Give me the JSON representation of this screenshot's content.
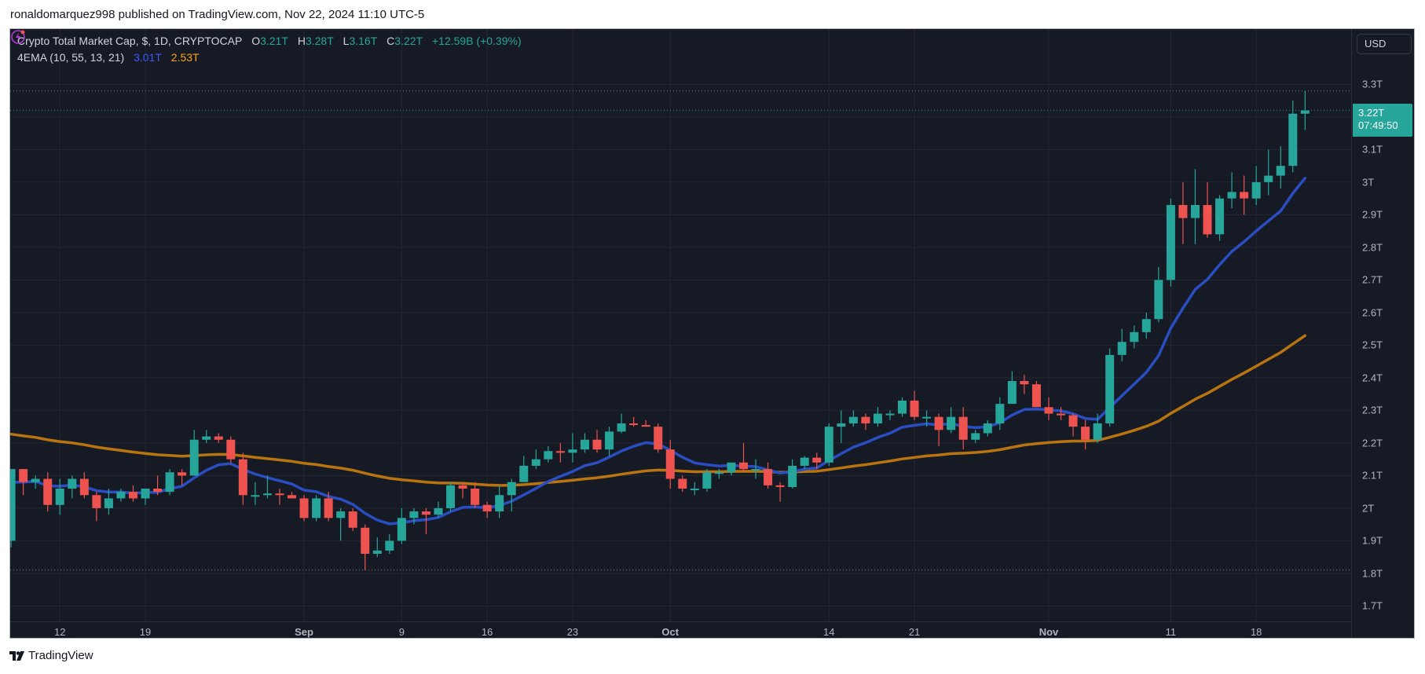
{
  "publisher_line": "ronaldomarquez998 published on TradingView.com, Nov 22, 2024 11:10 UTC-5",
  "legend": {
    "symbol": "Crypto Total Market Cap, $, 1D, CRYPTOCAP",
    "o_label": "O",
    "o_value": "3.21T",
    "h_label": "H",
    "h_value": "3.28T",
    "l_label": "L",
    "l_value": "3.16T",
    "c_label": "C",
    "c_value": "3.22T",
    "change": "+12.59B (+0.39%)",
    "indicator": "4EMA (10, 55, 13, 21)",
    "ema_fast_value": "3.01T",
    "ema_slow_value": "2.53T"
  },
  "price_axis": {
    "currency_button": "USD",
    "current_price": "3.22T",
    "countdown": "07:49:50"
  },
  "footer": {
    "brand": "TradingView"
  },
  "colors": {
    "up": "#26a69a",
    "down": "#ef5350",
    "ema_fast": "#2a4ec2",
    "ema_slow": "#b87410",
    "background": "#161a25"
  },
  "chart_data": {
    "type": "candlestick",
    "title": "Crypto Total Market Cap, $, 1D, CRYPTOCAP",
    "ylabel": "USD",
    "ylim": [
      1.66,
      3.38
    ],
    "y_unit": "T",
    "y_ticks": [
      {
        "v": 3.3,
        "label": "3.3T"
      },
      {
        "v": 3.1,
        "label": "3.1T"
      },
      {
        "v": 3.0,
        "label": "3T"
      },
      {
        "v": 2.9,
        "label": "2.9T"
      },
      {
        "v": 2.8,
        "label": "2.8T"
      },
      {
        "v": 2.7,
        "label": "2.7T"
      },
      {
        "v": 2.6,
        "label": "2.6T"
      },
      {
        "v": 2.5,
        "label": "2.5T"
      },
      {
        "v": 2.4,
        "label": "2.4T"
      },
      {
        "v": 2.3,
        "label": "2.3T"
      },
      {
        "v": 2.2,
        "label": "2.2T"
      },
      {
        "v": 2.1,
        "label": "2.1T"
      },
      {
        "v": 2.0,
        "label": "2T"
      },
      {
        "v": 1.9,
        "label": "1.9T"
      },
      {
        "v": 1.8,
        "label": "1.8T"
      },
      {
        "v": 1.7,
        "label": "1.7T"
      }
    ],
    "x_ticks": [
      {
        "i": 4,
        "label": "12"
      },
      {
        "i": 11,
        "label": "19"
      },
      {
        "i": 24,
        "label": "Sep"
      },
      {
        "i": 32,
        "label": "9"
      },
      {
        "i": 39,
        "label": "16"
      },
      {
        "i": 46,
        "label": "23"
      },
      {
        "i": 54,
        "label": "Oct"
      },
      {
        "i": 67,
        "label": "14"
      },
      {
        "i": 74,
        "label": "21"
      },
      {
        "i": 85,
        "label": "Nov"
      },
      {
        "i": 95,
        "label": "11"
      },
      {
        "i": 102,
        "label": "18"
      }
    ],
    "current_price": 3.22,
    "range_high": 3.28,
    "range_low": 1.81,
    "ema_fast": {
      "period": 10,
      "start": 2.08,
      "last": 3.01
    },
    "ema_slow": {
      "period": 55,
      "start": 2.227,
      "last": 2.53
    },
    "ohlc": [
      [
        1.9,
        2.12,
        1.88,
        2.12
      ],
      [
        2.12,
        2.12,
        2.04,
        2.08
      ],
      [
        2.08,
        2.1,
        2.06,
        2.09
      ],
      [
        2.09,
        2.11,
        1.99,
        2.01
      ],
      [
        2.01,
        2.09,
        1.98,
        2.06
      ],
      [
        2.06,
        2.1,
        2.03,
        2.09
      ],
      [
        2.09,
        2.11,
        2.03,
        2.04
      ],
      [
        2.04,
        2.05,
        1.96,
        2.0
      ],
      [
        2.0,
        2.06,
        1.98,
        2.03
      ],
      [
        2.03,
        2.06,
        2.02,
        2.05
      ],
      [
        2.05,
        2.07,
        2.02,
        2.03
      ],
      [
        2.03,
        2.06,
        2.01,
        2.06
      ],
      [
        2.06,
        2.1,
        2.04,
        2.05
      ],
      [
        2.05,
        2.12,
        2.04,
        2.11
      ],
      [
        2.11,
        2.12,
        2.07,
        2.1
      ],
      [
        2.1,
        2.24,
        2.1,
        2.21
      ],
      [
        2.21,
        2.24,
        2.2,
        2.22
      ],
      [
        2.22,
        2.23,
        2.2,
        2.21
      ],
      [
        2.21,
        2.22,
        2.14,
        2.15
      ],
      [
        2.15,
        2.17,
        2.01,
        2.04
      ],
      [
        2.04,
        2.08,
        2.01,
        2.04
      ],
      [
        2.04,
        2.1,
        2.03,
        2.045
      ],
      [
        2.045,
        2.06,
        2.01,
        2.04
      ],
      [
        2.04,
        2.05,
        2.03,
        2.03
      ],
      [
        2.03,
        2.04,
        1.96,
        1.97
      ],
      [
        1.97,
        2.04,
        1.96,
        2.03
      ],
      [
        2.03,
        2.05,
        1.96,
        1.97
      ],
      [
        1.97,
        2.0,
        1.9,
        1.99
      ],
      [
        1.99,
        2.0,
        1.93,
        1.94
      ],
      [
        1.94,
        1.95,
        1.81,
        1.86
      ],
      [
        1.86,
        1.91,
        1.85,
        1.87
      ],
      [
        1.87,
        1.92,
        1.86,
        1.9
      ],
      [
        1.9,
        2.0,
        1.89,
        1.97
      ],
      [
        1.97,
        2.0,
        1.95,
        1.99
      ],
      [
        1.99,
        2.0,
        1.92,
        1.98
      ],
      [
        1.98,
        2.02,
        1.97,
        2.0
      ],
      [
        2.0,
        2.08,
        1.99,
        2.07
      ],
      [
        2.07,
        2.08,
        2.03,
        2.06
      ],
      [
        2.06,
        2.08,
        2.0,
        2.01
      ],
      [
        2.01,
        2.02,
        1.97,
        1.99
      ],
      [
        1.99,
        2.07,
        1.97,
        2.04
      ],
      [
        2.04,
        2.09,
        1.99,
        2.08
      ],
      [
        2.08,
        2.16,
        2.08,
        2.13
      ],
      [
        2.13,
        2.18,
        2.12,
        2.15
      ],
      [
        2.15,
        2.19,
        2.14,
        2.175
      ],
      [
        2.175,
        2.2,
        2.14,
        2.17
      ],
      [
        2.17,
        2.23,
        2.14,
        2.18
      ],
      [
        2.18,
        2.23,
        2.17,
        2.21
      ],
      [
        2.21,
        2.24,
        2.17,
        2.18
      ],
      [
        2.18,
        2.25,
        2.16,
        2.235
      ],
      [
        2.235,
        2.29,
        2.23,
        2.26
      ],
      [
        2.26,
        2.28,
        2.25,
        2.255
      ],
      [
        2.255,
        2.27,
        2.25,
        2.25
      ],
      [
        2.25,
        2.26,
        2.17,
        2.18
      ],
      [
        2.18,
        2.21,
        2.06,
        2.09
      ],
      [
        2.09,
        2.1,
        2.05,
        2.06
      ],
      [
        2.06,
        2.08,
        2.04,
        2.06
      ],
      [
        2.06,
        2.12,
        2.05,
        2.11
      ],
      [
        2.11,
        2.12,
        2.09,
        2.11
      ],
      [
        2.11,
        2.14,
        2.1,
        2.14
      ],
      [
        2.14,
        2.2,
        2.11,
        2.12
      ],
      [
        2.12,
        2.15,
        2.09,
        2.12
      ],
      [
        2.12,
        2.14,
        2.06,
        2.07
      ],
      [
        2.07,
        2.08,
        2.02,
        2.065
      ],
      [
        2.065,
        2.15,
        2.06,
        2.13
      ],
      [
        2.13,
        2.16,
        2.12,
        2.155
      ],
      [
        2.155,
        2.17,
        2.12,
        2.14
      ],
      [
        2.14,
        2.26,
        2.13,
        2.25
      ],
      [
        2.25,
        2.3,
        2.2,
        2.26
      ],
      [
        2.26,
        2.3,
        2.25,
        2.28
      ],
      [
        2.28,
        2.29,
        2.24,
        2.26
      ],
      [
        2.26,
        2.31,
        2.25,
        2.29
      ],
      [
        2.29,
        2.3,
        2.27,
        2.29
      ],
      [
        2.29,
        2.34,
        2.28,
        2.33
      ],
      [
        2.33,
        2.36,
        2.27,
        2.28
      ],
      [
        2.28,
        2.3,
        2.25,
        2.28
      ],
      [
        2.28,
        2.29,
        2.19,
        2.24
      ],
      [
        2.24,
        2.31,
        2.23,
        2.28
      ],
      [
        2.28,
        2.31,
        2.18,
        2.21
      ],
      [
        2.21,
        2.24,
        2.2,
        2.23
      ],
      [
        2.23,
        2.27,
        2.22,
        2.26
      ],
      [
        2.26,
        2.34,
        2.24,
        2.32
      ],
      [
        2.32,
        2.42,
        2.32,
        2.39
      ],
      [
        2.39,
        2.41,
        2.35,
        2.38
      ],
      [
        2.38,
        2.39,
        2.31,
        2.31
      ],
      [
        2.31,
        2.34,
        2.27,
        2.29
      ],
      [
        2.29,
        2.31,
        2.27,
        2.285
      ],
      [
        2.285,
        2.29,
        2.22,
        2.25
      ],
      [
        2.25,
        2.27,
        2.18,
        2.21
      ],
      [
        2.21,
        2.29,
        2.2,
        2.26
      ],
      [
        2.26,
        2.49,
        2.25,
        2.47
      ],
      [
        2.47,
        2.55,
        2.45,
        2.51
      ],
      [
        2.51,
        2.56,
        2.49,
        2.54
      ],
      [
        2.54,
        2.6,
        2.52,
        2.58
      ],
      [
        2.58,
        2.74,
        2.57,
        2.7
      ],
      [
        2.7,
        2.95,
        2.68,
        2.93
      ],
      [
        2.93,
        3.0,
        2.81,
        2.89
      ],
      [
        2.89,
        3.04,
        2.81,
        2.93
      ],
      [
        2.93,
        3.0,
        2.83,
        2.84
      ],
      [
        2.84,
        2.96,
        2.82,
        2.95
      ],
      [
        2.95,
        3.03,
        2.92,
        2.97
      ],
      [
        2.97,
        3.02,
        2.9,
        2.95
      ],
      [
        2.95,
        3.05,
        2.93,
        3.0
      ],
      [
        3.0,
        3.1,
        2.96,
        3.02
      ],
      [
        3.02,
        3.11,
        2.98,
        3.05
      ],
      [
        3.05,
        3.25,
        3.03,
        3.21
      ],
      [
        3.21,
        3.28,
        3.16,
        3.22
      ]
    ]
  }
}
